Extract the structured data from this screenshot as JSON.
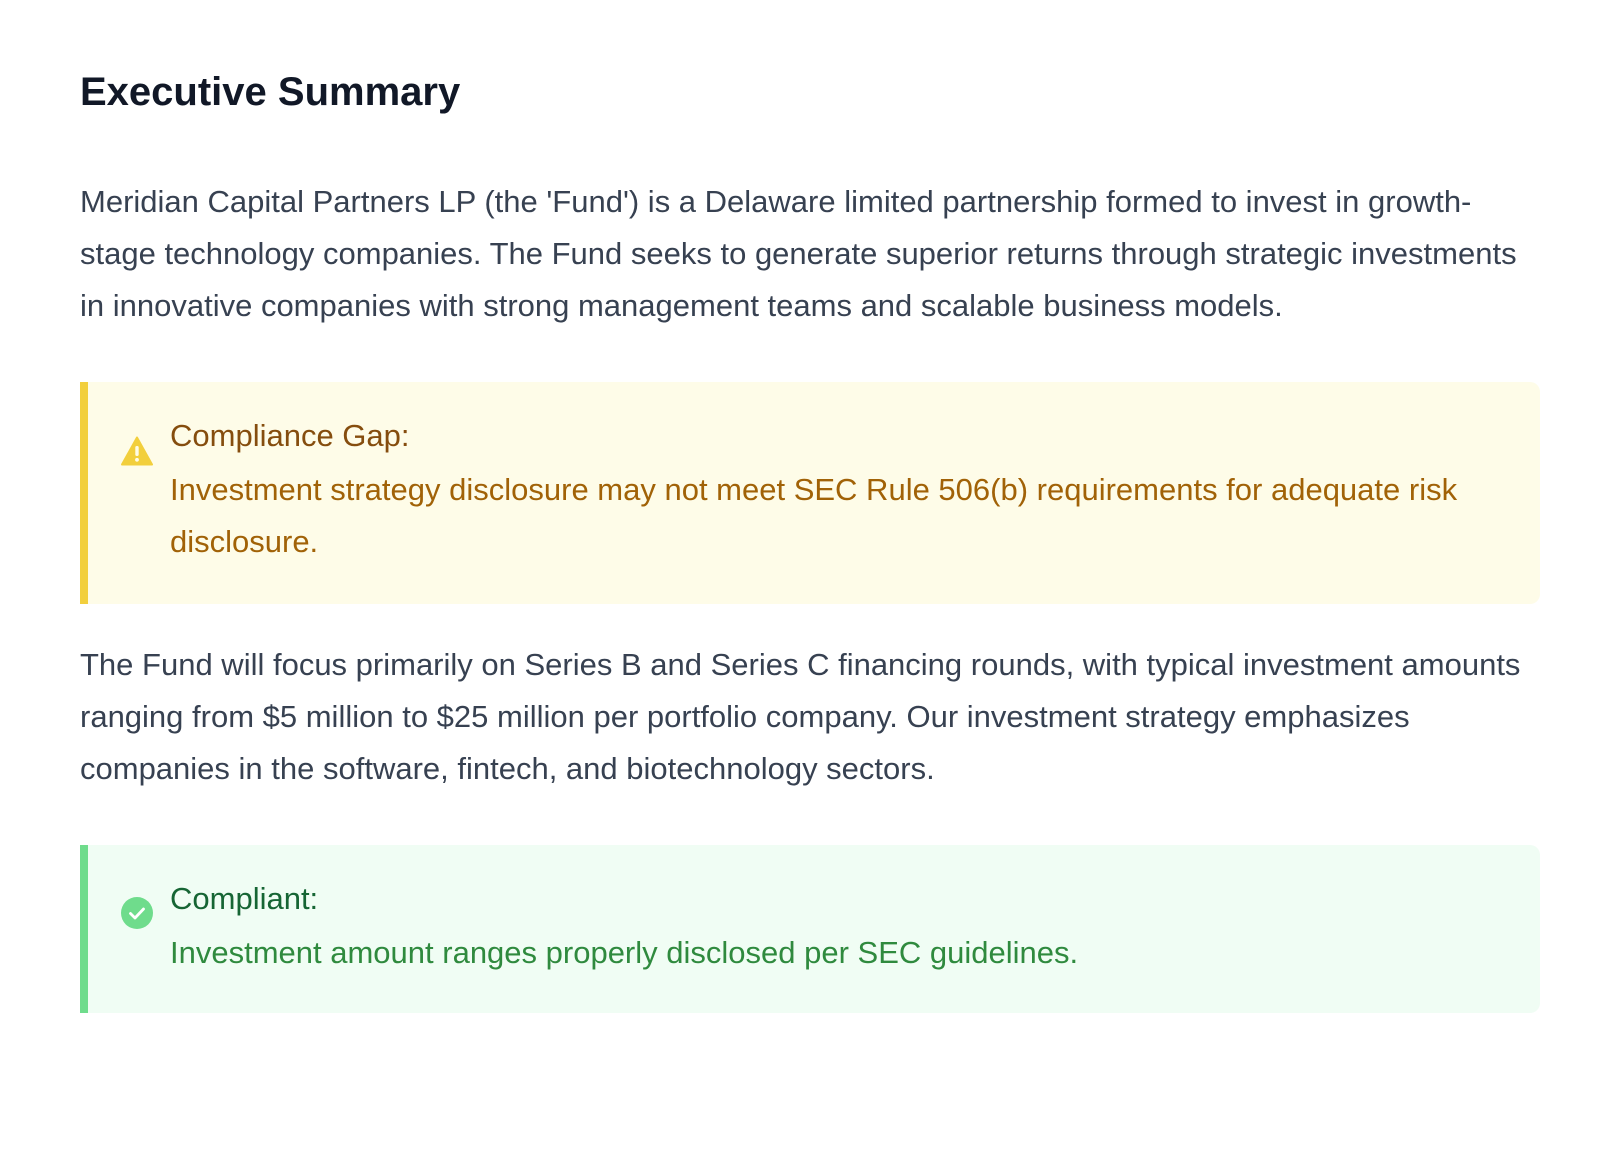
{
  "section": {
    "title": "Executive Summary"
  },
  "paragraphs": [
    "Meridian Capital Partners LP (the 'Fund') is a Delaware limited partnership formed to invest in growth-stage technology companies. The Fund seeks to generate superior returns through strategic investments in innovative companies with strong management teams and scalable business models.",
    "The Fund will focus primarily on Series B and Series C financing rounds, with typical investment amounts ranging from $5 million to $25 million per portfolio company. Our investment strategy emphasizes companies in the software, fintech, and biotechnology sectors."
  ],
  "callouts": [
    {
      "type": "warning",
      "icon": "warning-triangle-icon",
      "title": "Compliance Gap:",
      "text": "Investment strategy disclosure may not meet SEC Rule 506(b) requirements for adequate risk disclosure.",
      "accent_color": "#f2cf3d",
      "background_color": "#fefce8"
    },
    {
      "type": "success",
      "icon": "check-circle-icon",
      "title": "Compliant:",
      "text": "Investment amount ranges properly disclosed per SEC guidelines.",
      "accent_color": "#6fdc8c",
      "background_color": "#f0fdf4"
    }
  ]
}
